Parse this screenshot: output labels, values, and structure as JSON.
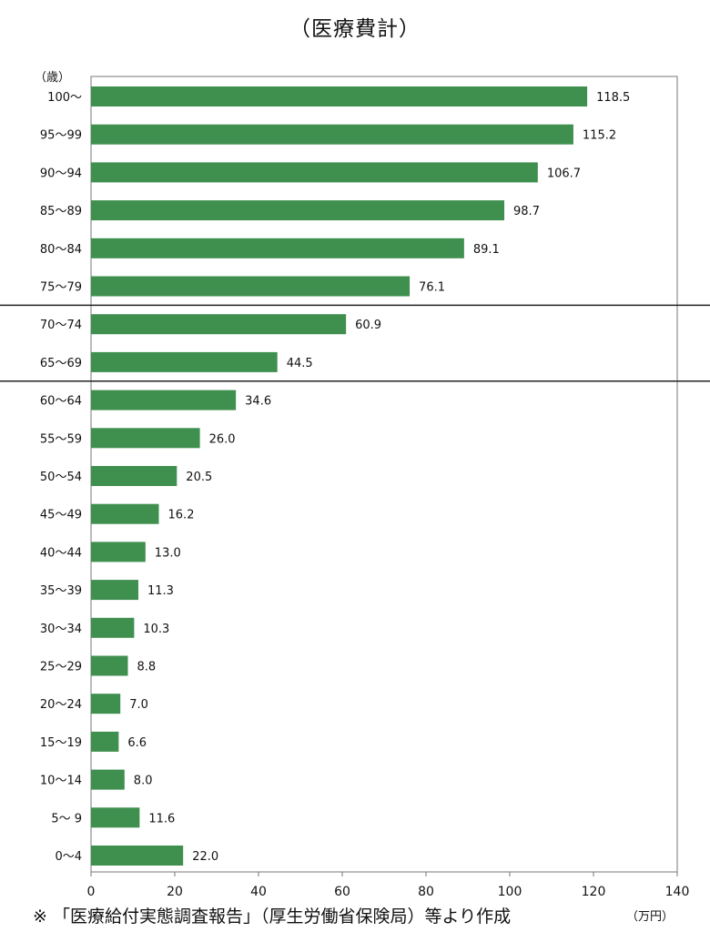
{
  "title": "（医療費計）",
  "footnote": "※ 「医療給付実態調査報告」（厚生労働省保険局）等より作成",
  "chart_data": {
    "type": "bar",
    "orientation": "horizontal",
    "title": "（医療費計）",
    "xlabel": "（万円）",
    "ylabel": "（歳）",
    "xlim": [
      0,
      140
    ],
    "xticks": [
      "0",
      "20",
      "40",
      "60",
      "80",
      "100",
      "120",
      "140"
    ],
    "xtick_values": [
      0,
      20,
      40,
      60,
      80,
      100,
      120,
      140
    ],
    "categories": [
      "100～",
      "95～99",
      "90～94",
      "85～89",
      "80～84",
      "75～79",
      "70～74",
      "65～69",
      "60～64",
      "55～59",
      "50～54",
      "45～49",
      "40～44",
      "35～39",
      "30～34",
      "25～29",
      "20～24",
      "15～19",
      "10～14",
      "5～ 9",
      "0～4"
    ],
    "values": [
      118.5,
      115.2,
      106.7,
      98.7,
      89.1,
      76.1,
      60.9,
      44.5,
      34.6,
      26.0,
      20.5,
      16.2,
      13.0,
      11.3,
      10.3,
      8.8,
      7.0,
      6.6,
      8.0,
      11.6,
      22.0
    ],
    "value_labels": [
      "118.5",
      "115.2",
      "106.7",
      "98.7",
      "89.1",
      "76.1",
      "60.9",
      "44.5",
      "34.6",
      "26.0",
      "20.5",
      "16.2",
      "13.0",
      "11.3",
      "10.3",
      "8.8",
      "7.0",
      "6.6",
      "8.0",
      "11.6",
      "22.0"
    ],
    "bar_color": "#3f8f4f",
    "grid": false,
    "group_dividers_after": [
      "75～79",
      "65～69"
    ]
  }
}
